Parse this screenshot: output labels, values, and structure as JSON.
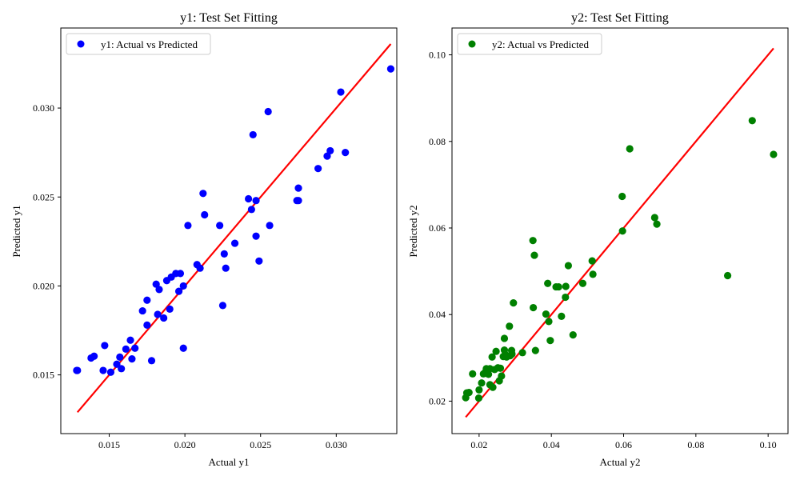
{
  "chart_data": [
    {
      "type": "scatter",
      "title": "y1: Test Set Fitting",
      "xlabel": "Actual y1",
      "ylabel": "Predicted y1",
      "xlim": [
        0.0118,
        0.034
      ],
      "ylim": [
        0.0117,
        0.0345
      ],
      "xticks": [
        0.015,
        0.02,
        0.025,
        0.03
      ],
      "xtick_labels": [
        "0.015",
        "0.020",
        "0.025",
        "0.030"
      ],
      "yticks": [
        0.015,
        0.02,
        0.025,
        0.03
      ],
      "ytick_labels": [
        "0.015",
        "0.020",
        "0.025",
        "0.030"
      ],
      "grid": false,
      "legend_position": "top-left",
      "series": [
        {
          "name": "y1: Actual vs Predicted",
          "color": "#0000ff",
          "marker": "circle",
          "points": [
            [
              0.0129,
              0.01525
            ],
            [
              0.01285,
              0.01525
            ],
            [
              0.0138,
              0.01595
            ],
            [
              0.014,
              0.01605
            ],
            [
              0.0146,
              0.01525
            ],
            [
              0.0147,
              0.01665
            ],
            [
              0.0151,
              0.01515
            ],
            [
              0.0155,
              0.0156
            ],
            [
              0.0157,
              0.016
            ],
            [
              0.0158,
              0.01535
            ],
            [
              0.0161,
              0.01645
            ],
            [
              0.0164,
              0.01695
            ],
            [
              0.0165,
              0.0159
            ],
            [
              0.0167,
              0.0165
            ],
            [
              0.0172,
              0.0186
            ],
            [
              0.0175,
              0.0192
            ],
            [
              0.0175,
              0.0178
            ],
            [
              0.0178,
              0.0158
            ],
            [
              0.0181,
              0.0201
            ],
            [
              0.0182,
              0.0184
            ],
            [
              0.0183,
              0.0198
            ],
            [
              0.0186,
              0.0182
            ],
            [
              0.0188,
              0.0203
            ],
            [
              0.019,
              0.0187
            ],
            [
              0.0191,
              0.0205
            ],
            [
              0.0194,
              0.0207
            ],
            [
              0.0196,
              0.0197
            ],
            [
              0.0197,
              0.0207
            ],
            [
              0.0199,
              0.0165
            ],
            [
              0.0199,
              0.02
            ],
            [
              0.0202,
              0.0234
            ],
            [
              0.0208,
              0.0212
            ],
            [
              0.021,
              0.021
            ],
            [
              0.0212,
              0.0252
            ],
            [
              0.0213,
              0.024
            ],
            [
              0.0223,
              0.0234
            ],
            [
              0.0225,
              0.0189
            ],
            [
              0.0226,
              0.0218
            ],
            [
              0.0227,
              0.021
            ],
            [
              0.0233,
              0.0224
            ],
            [
              0.0242,
              0.0249
            ],
            [
              0.0244,
              0.0243
            ],
            [
              0.0245,
              0.0285
            ],
            [
              0.0247,
              0.0248
            ],
            [
              0.0247,
              0.0228
            ],
            [
              0.0249,
              0.0214
            ],
            [
              0.0255,
              0.0298
            ],
            [
              0.0256,
              0.0234
            ],
            [
              0.0274,
              0.0248
            ],
            [
              0.0275,
              0.0248
            ],
            [
              0.0275,
              0.0255
            ],
            [
              0.0288,
              0.0266
            ],
            [
              0.0294,
              0.0273
            ],
            [
              0.0296,
              0.0276
            ],
            [
              0.0303,
              0.0309
            ],
            [
              0.0306,
              0.0275
            ],
            [
              0.0336,
              0.0322
            ]
          ]
        },
        {
          "name": "ideal-fit",
          "color": "#ff0000",
          "line": [
            [
              0.0129,
              0.0129
            ],
            [
              0.0336,
              0.0336
            ]
          ]
        }
      ]
    },
    {
      "type": "scatter",
      "title": "y2: Test Set Fitting",
      "xlabel": "Actual y2",
      "ylabel": "Predicted y2",
      "xlim": [
        0.0125,
        0.1055
      ],
      "ylim": [
        0.0125,
        0.1062
      ],
      "xticks": [
        0.02,
        0.04,
        0.06,
        0.08,
        0.1
      ],
      "xtick_labels": [
        "0.02",
        "0.04",
        "0.06",
        "0.08",
        "0.10"
      ],
      "yticks": [
        0.02,
        0.04,
        0.06,
        0.08,
        0.1
      ],
      "ytick_labels": [
        "0.02",
        "0.04",
        "0.06",
        "0.08",
        "0.10"
      ],
      "grid": false,
      "legend_position": "top-left",
      "series": [
        {
          "name": "y2: Actual vs Predicted",
          "color": "#008000",
          "marker": "circle",
          "points": [
            [
              0.0163,
              0.0208
            ],
            [
              0.0166,
              0.0219
            ],
            [
              0.0172,
              0.022
            ],
            [
              0.0182,
              0.0263
            ],
            [
              0.0199,
              0.0207
            ],
            [
              0.02,
              0.0226
            ],
            [
              0.0207,
              0.0242
            ],
            [
              0.0212,
              0.0263
            ],
            [
              0.0218,
              0.0268
            ],
            [
              0.022,
              0.0275
            ],
            [
              0.0226,
              0.0262
            ],
            [
              0.023,
              0.0275
            ],
            [
              0.023,
              0.0238
            ],
            [
              0.0236,
              0.0302
            ],
            [
              0.0238,
              0.0232
            ],
            [
              0.0243,
              0.0273
            ],
            [
              0.0247,
              0.0315
            ],
            [
              0.0252,
              0.0277
            ],
            [
              0.0256,
              0.0247
            ],
            [
              0.0259,
              0.0276
            ],
            [
              0.0262,
              0.0258
            ],
            [
              0.0267,
              0.0303
            ],
            [
              0.027,
              0.0345
            ],
            [
              0.027,
              0.0318
            ],
            [
              0.0272,
              0.0308
            ],
            [
              0.0276,
              0.0302
            ],
            [
              0.0284,
              0.0373
            ],
            [
              0.0286,
              0.0305
            ],
            [
              0.029,
              0.0317
            ],
            [
              0.0291,
              0.0309
            ],
            [
              0.0295,
              0.0427
            ],
            [
              0.032,
              0.0312
            ],
            [
              0.0349,
              0.0571
            ],
            [
              0.035,
              0.0416
            ],
            [
              0.0353,
              0.0537
            ],
            [
              0.0356,
              0.0317
            ],
            [
              0.0385,
              0.0401
            ],
            [
              0.039,
              0.0472
            ],
            [
              0.0393,
              0.0384
            ],
            [
              0.0397,
              0.034
            ],
            [
              0.0413,
              0.0464
            ],
            [
              0.042,
              0.0464
            ],
            [
              0.0428,
              0.0396
            ],
            [
              0.0439,
              0.044
            ],
            [
              0.044,
              0.0465
            ],
            [
              0.0447,
              0.0513
            ],
            [
              0.046,
              0.0353
            ],
            [
              0.0487,
              0.0472
            ],
            [
              0.0513,
              0.0524
            ],
            [
              0.0515,
              0.0493
            ],
            [
              0.0596,
              0.0673
            ],
            [
              0.0597,
              0.0593
            ],
            [
              0.0617,
              0.0783
            ],
            [
              0.0686,
              0.0624
            ],
            [
              0.0692,
              0.0609
            ],
            [
              0.0888,
              0.049
            ],
            [
              0.0956,
              0.0848
            ],
            [
              0.1015,
              0.077
            ]
          ]
        },
        {
          "name": "ideal-fit",
          "color": "#ff0000",
          "line": [
            [
              0.0163,
              0.0163
            ],
            [
              0.1015,
              0.1015
            ]
          ]
        }
      ]
    }
  ]
}
